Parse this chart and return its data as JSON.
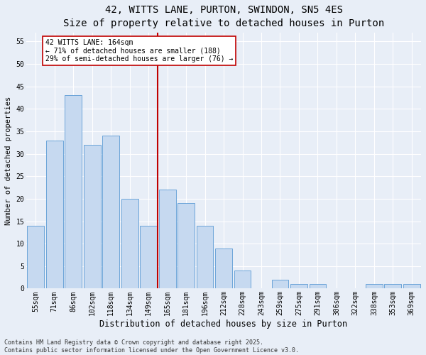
{
  "title": "42, WITTS LANE, PURTON, SWINDON, SN5 4ES",
  "subtitle": "Size of property relative to detached houses in Purton",
  "xlabel": "Distribution of detached houses by size in Purton",
  "ylabel": "Number of detached properties",
  "categories": [
    "55sqm",
    "71sqm",
    "86sqm",
    "102sqm",
    "118sqm",
    "134sqm",
    "149sqm",
    "165sqm",
    "181sqm",
    "196sqm",
    "212sqm",
    "228sqm",
    "243sqm",
    "259sqm",
    "275sqm",
    "291sqm",
    "306sqm",
    "322sqm",
    "338sqm",
    "353sqm",
    "369sqm"
  ],
  "values": [
    14,
    33,
    43,
    32,
    34,
    20,
    14,
    22,
    19,
    14,
    9,
    4,
    0,
    2,
    1,
    1,
    0,
    0,
    1,
    1,
    1
  ],
  "bar_color": "#c6d9f0",
  "bar_edge_color": "#5b9bd5",
  "vline_x_index": 7,
  "vline_color": "#c00000",
  "annotation_text": "42 WITTS LANE: 164sqm\n← 71% of detached houses are smaller (188)\n29% of semi-detached houses are larger (76) →",
  "annotation_box_color": "#c00000",
  "annotation_text_color": "#000000",
  "ylim": [
    0,
    57
  ],
  "yticks": [
    0,
    5,
    10,
    15,
    20,
    25,
    30,
    35,
    40,
    45,
    50,
    55
  ],
  "background_color": "#e8eef7",
  "plot_bg_color": "#e8eef7",
  "footer_text": "Contains HM Land Registry data © Crown copyright and database right 2025.\nContains public sector information licensed under the Open Government Licence v3.0.",
  "title_fontsize": 10,
  "subtitle_fontsize": 9,
  "xlabel_fontsize": 8.5,
  "ylabel_fontsize": 7.5,
  "tick_fontsize": 7,
  "footer_fontsize": 6,
  "annotation_fontsize": 7
}
